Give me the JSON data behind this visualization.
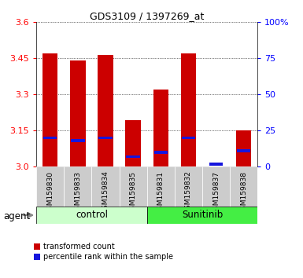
{
  "title": "GDS3109 / 1397269_at",
  "samples": [
    "GSM159830",
    "GSM159833",
    "GSM159834",
    "GSM159835",
    "GSM159831",
    "GSM159832",
    "GSM159837",
    "GSM159838"
  ],
  "groups": [
    "control",
    "control",
    "control",
    "control",
    "Sunitinib",
    "Sunitinib",
    "Sunitinib",
    "Sunitinib"
  ],
  "red_values": [
    3.47,
    3.44,
    3.465,
    3.195,
    3.32,
    3.47,
    3.0,
    3.15
  ],
  "blue_percentiles": [
    20,
    18,
    20,
    7,
    10,
    20,
    2,
    11
  ],
  "ymin": 3.0,
  "ymax": 3.6,
  "yticks": [
    3.0,
    3.15,
    3.3,
    3.45,
    3.6
  ],
  "right_yticks": [
    0,
    25,
    50,
    75,
    100
  ],
  "right_ylabels": [
    "0",
    "25",
    "50",
    "75",
    "100%"
  ],
  "bar_color": "#cc0000",
  "blue_color": "#1515dd",
  "control_color": "#ccffcc",
  "sunitinib_color": "#44ee44",
  "label_bg_color": "#cccccc",
  "bar_width": 0.55,
  "legend_red": "transformed count",
  "legend_blue": "percentile rank within the sample",
  "control_label": "control",
  "sunitinib_label": "Sunitinib",
  "agent_label": "agent"
}
